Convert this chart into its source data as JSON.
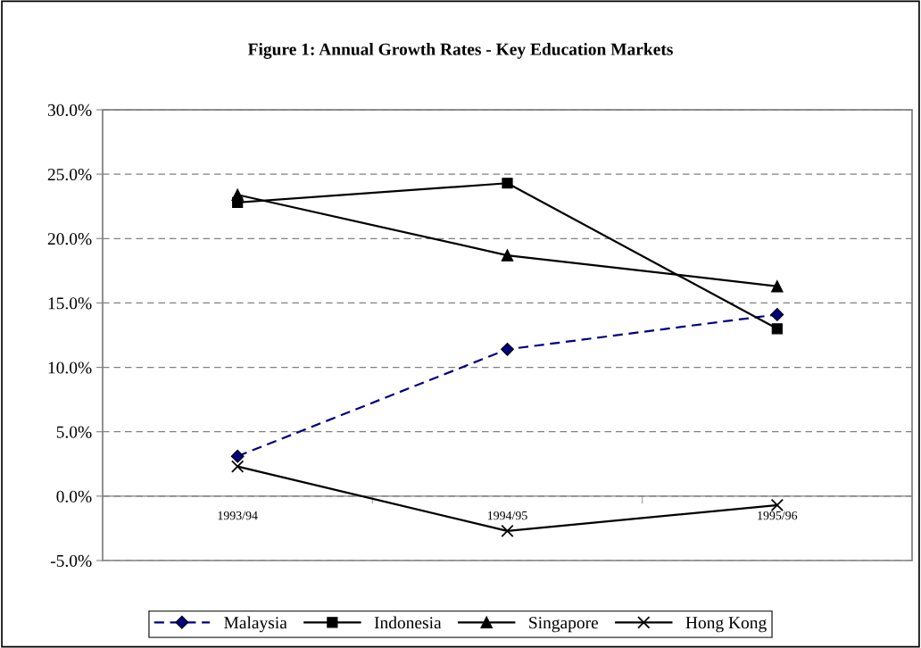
{
  "chart_data": {
    "type": "line",
    "title": "Figure 1: Annual Growth Rates - Key Education Markets",
    "categories": [
      "1993/94",
      "1994/95",
      "1995/96"
    ],
    "series": [
      {
        "name": "Malaysia",
        "color": "#000080",
        "values": [
          3.1,
          11.4,
          14.1
        ],
        "marker": "diamond",
        "line_style": "dashed"
      },
      {
        "name": "Indonesia",
        "color": "#000000",
        "values": [
          22.8,
          24.3,
          13.0
        ],
        "marker": "square",
        "line_style": "solid"
      },
      {
        "name": "Singapore",
        "color": "#000000",
        "values": [
          23.4,
          18.7,
          16.3
        ],
        "marker": "triangle",
        "line_style": "solid"
      },
      {
        "name": "Hong Kong",
        "color": "#000000",
        "values": [
          2.3,
          -2.7,
          -0.7
        ],
        "marker": "cross",
        "line_style": "solid"
      }
    ],
    "ylim": [
      -5,
      30
    ],
    "yticks": [
      {
        "value": -5,
        "label": "-5.0%"
      },
      {
        "value": 0,
        "label": "0.0%"
      },
      {
        "value": 5,
        "label": "5.0%"
      },
      {
        "value": 10,
        "label": "10.0%"
      },
      {
        "value": 15,
        "label": "15.0%"
      },
      {
        "value": 20,
        "label": "20.0%"
      },
      {
        "value": 25,
        "label": "25.0%"
      },
      {
        "value": 30,
        "label": "30.0%"
      }
    ],
    "grid": "y",
    "legend": "bottom"
  }
}
